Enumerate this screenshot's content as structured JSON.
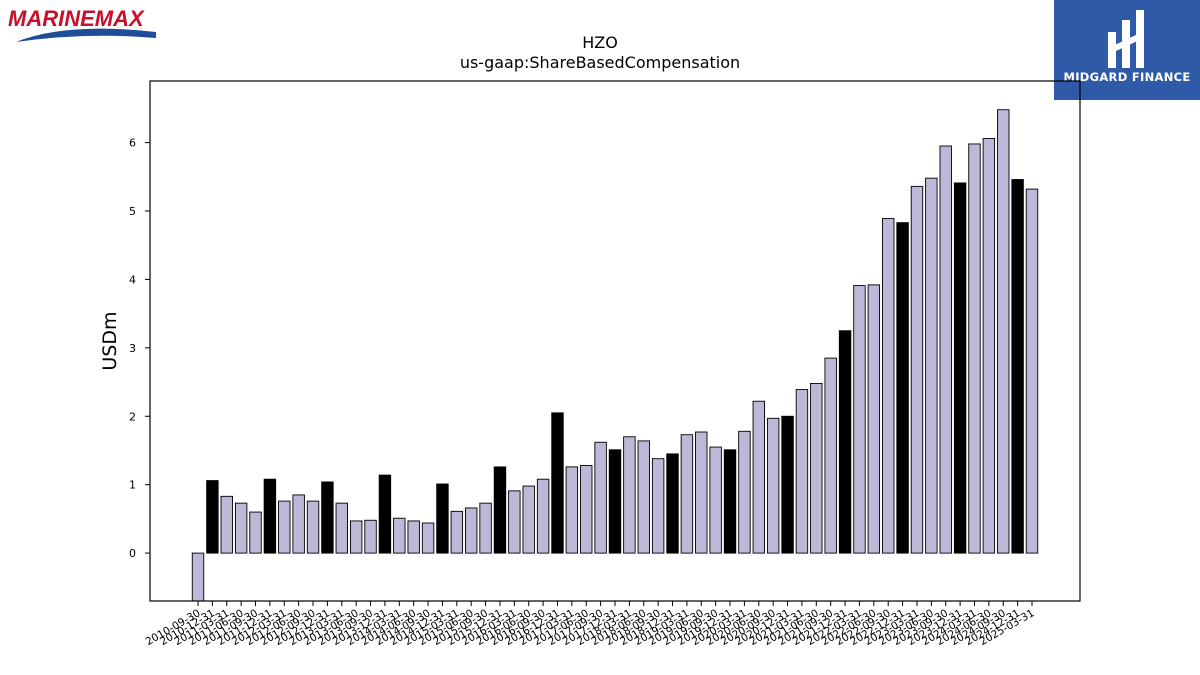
{
  "branding": {
    "left_logo_text": "MARINEMAX",
    "right_logo_text": "MIDGARD FINANCE",
    "left_logo_color": "#c8102e",
    "left_logo_swoosh_color": "#1f4e99",
    "right_logo_bg": "#2f5aa8"
  },
  "chart_data": {
    "type": "bar",
    "title": "HZO",
    "subtitle": "us-gaap:ShareBasedCompensation",
    "xlabel": "",
    "ylabel": "USDm",
    "ylim": [
      -0.7,
      6.9
    ],
    "yticks": [
      0,
      1,
      2,
      3,
      4,
      5,
      6
    ],
    "grid": false,
    "colors": {
      "highlight": "#000000",
      "default": "#bbb8d8",
      "edge": "#000000"
    },
    "categories": [
      "2010-09-30",
      "2010-12-31",
      "2011-03-31",
      "2011-06-30",
      "2011-09-30",
      "2011-12-31",
      "2012-03-31",
      "2012-06-30",
      "2012-09-30",
      "2012-12-31",
      "2013-03-31",
      "2013-06-30",
      "2013-09-30",
      "2013-12-31",
      "2014-03-31",
      "2014-06-30",
      "2014-09-30",
      "2014-12-31",
      "2015-03-31",
      "2015-06-30",
      "2015-09-30",
      "2015-12-31",
      "2016-03-31",
      "2016-06-30",
      "2016-09-30",
      "2016-12-31",
      "2017-03-31",
      "2017-06-30",
      "2017-09-30",
      "2017-12-31",
      "2018-03-31",
      "2018-06-30",
      "2018-09-30",
      "2018-12-31",
      "2019-03-31",
      "2019-06-30",
      "2019-09-30",
      "2019-12-31",
      "2020-03-31",
      "2020-06-30",
      "2020-09-30",
      "2020-12-31",
      "2021-03-31",
      "2021-06-30",
      "2021-09-30",
      "2021-12-31",
      "2022-03-31",
      "2022-06-30",
      "2022-09-30",
      "2022-12-31",
      "2023-03-31",
      "2023-06-30",
      "2023-09-30",
      "2023-12-31",
      "2024-03-31",
      "2024-06-30",
      "2024-09-30",
      "2024-12-31",
      "2025-03-31"
    ],
    "values": [
      -0.7,
      1.06,
      0.83,
      0.73,
      0.6,
      1.08,
      0.76,
      0.85,
      0.76,
      1.04,
      0.73,
      0.47,
      0.48,
      1.14,
      0.51,
      0.47,
      0.44,
      1.01,
      0.61,
      0.66,
      0.73,
      1.26,
      0.91,
      0.98,
      1.08,
      2.05,
      1.26,
      1.28,
      1.62,
      1.51,
      1.7,
      1.64,
      1.38,
      1.45,
      1.73,
      1.77,
      1.55,
      1.51,
      1.78,
      2.22,
      1.97,
      2.0,
      2.39,
      2.48,
      2.85,
      3.25,
      3.91,
      3.92,
      4.89,
      4.83,
      5.36,
      5.48,
      5.95,
      5.41,
      5.98,
      6.06,
      6.48,
      5.46,
      5.32
    ],
    "highlight": [
      false,
      true,
      false,
      false,
      false,
      true,
      false,
      false,
      false,
      true,
      false,
      false,
      false,
      true,
      false,
      false,
      false,
      true,
      false,
      false,
      false,
      true,
      false,
      false,
      false,
      true,
      false,
      false,
      false,
      true,
      false,
      false,
      false,
      true,
      false,
      false,
      false,
      true,
      false,
      false,
      false,
      true,
      false,
      false,
      false,
      true,
      false,
      false,
      false,
      true,
      false,
      false,
      false,
      true,
      false,
      false,
      false,
      true,
      false
    ]
  }
}
